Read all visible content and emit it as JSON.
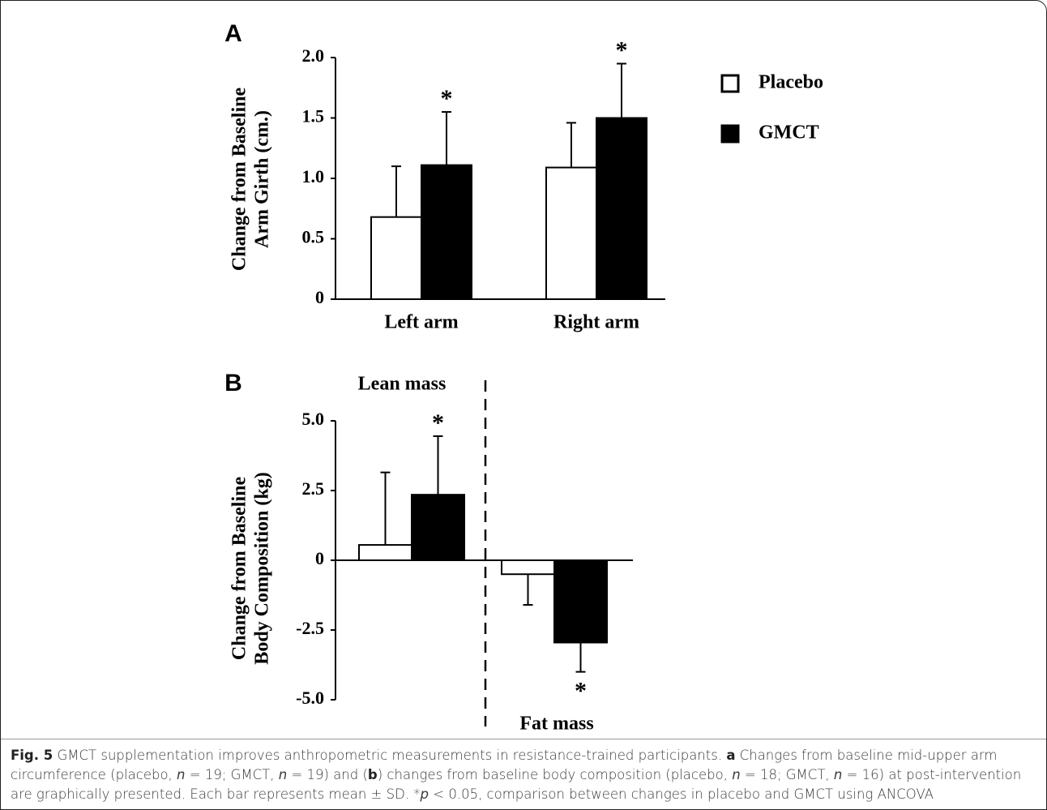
{
  "chart_data": [
    {
      "type": "bar",
      "panel": "A",
      "ylabel": [
        "Change from Baseline",
        "Arm Girth (cm.)"
      ],
      "categories": [
        "Left arm",
        "Right arm"
      ],
      "series": [
        {
          "name": "Placebo",
          "color": "#ffffff",
          "values": [
            0.68,
            1.09
          ],
          "errors": [
            0.42,
            0.37
          ]
        },
        {
          "name": "GMCT",
          "color": "#000000",
          "values": [
            1.11,
            1.5
          ],
          "errors": [
            0.44,
            0.45
          ],
          "significance": [
            "*",
            "*"
          ]
        }
      ],
      "ylim": [
        0,
        2
      ],
      "yticks": [
        0,
        0.5,
        {
          "value": 1,
          "label": "1.0"
        },
        1.5,
        {
          "value": 2,
          "label": "2.0"
        }
      ],
      "legend": "right"
    },
    {
      "type": "bar",
      "panel": "B",
      "ylabel": [
        "Change from Baseline",
        "Body Composition (kg)"
      ],
      "categories": [
        "Lean mass",
        "Fat mass"
      ],
      "series": [
        {
          "name": "Placebo",
          "color": "#ffffff",
          "values": [
            0.55,
            -0.5
          ],
          "errors": [
            2.6,
            1.1
          ]
        },
        {
          "name": "GMCT",
          "color": "#000000",
          "values": [
            2.35,
            -2.95
          ],
          "errors": [
            2.1,
            1.05
          ],
          "significance": [
            "*",
            "*"
          ]
        }
      ],
      "ylim": [
        -5,
        5
      ],
      "yticks": [
        {
          "value": -5,
          "label": "-5.0"
        },
        -2.5,
        0,
        2.5,
        {
          "value": 5,
          "label": "5.0"
        }
      ],
      "divider": true
    }
  ],
  "caption": {
    "segments": [
      "Fig. 5",
      " GMCT supplementation improves anthropometric measurements in resistance-trained participants. ",
      "a",
      " Changes from baseline mid-upper arm circumference (placebo, ",
      "n",
      " = 19; GMCT, ",
      "n",
      " = 19) and (",
      "b",
      ") changes from baseline body composition (placebo, ",
      "n",
      " = 18; GMCT, ",
      "n",
      " = 16) at post-intervention are graphically presented. Each bar represents mean ± SD. *",
      "p",
      " < 0.05, comparison between changes in placebo and GMCT using ANCOVA"
    ],
    "styles": [
      "bold",
      "normal",
      "bold",
      "normal",
      "italic",
      "normal",
      "italic",
      "normal",
      "bold",
      "normal",
      "italic",
      "normal",
      "italic",
      "normal",
      "italic",
      "normal"
    ]
  }
}
